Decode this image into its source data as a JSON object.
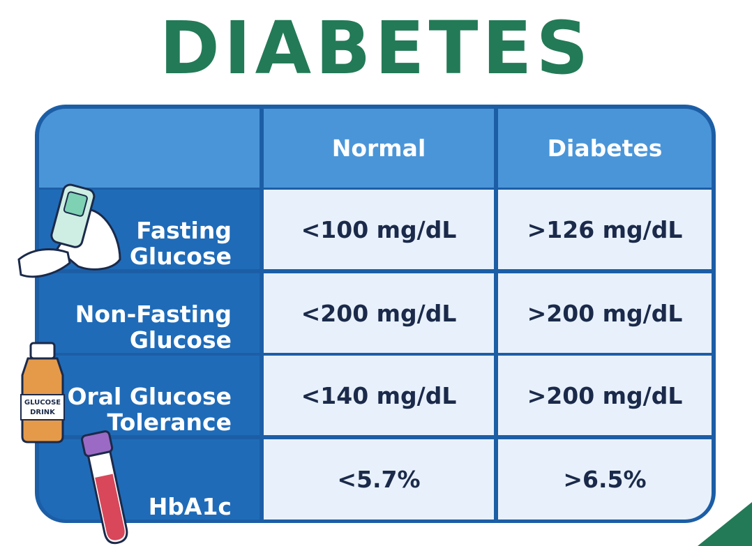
{
  "header": {
    "title": "DIABETES"
  },
  "table": {
    "columns": [
      "Normal",
      "Diabetes"
    ],
    "rows": [
      {
        "label": [
          "Fasting",
          "Glucose"
        ],
        "cells": [
          "<100 mg/dL",
          ">126 mg/dL"
        ]
      },
      {
        "label": [
          "Non-Fasting",
          "Glucose"
        ],
        "cells": [
          "<200 mg/dL",
          ">200 mg/dL"
        ]
      },
      {
        "label": [
          "Oral Glucose",
          "Tolerance"
        ],
        "cells": [
          "<140 mg/dL",
          ">200 mg/dL"
        ]
      },
      {
        "label": [
          "HbA1c"
        ],
        "cells": [
          "<5.7%",
          ">6.5%"
        ]
      }
    ]
  },
  "illustrations": {
    "bottle_label": [
      "GLUCOSE",
      "DRINK"
    ]
  }
}
